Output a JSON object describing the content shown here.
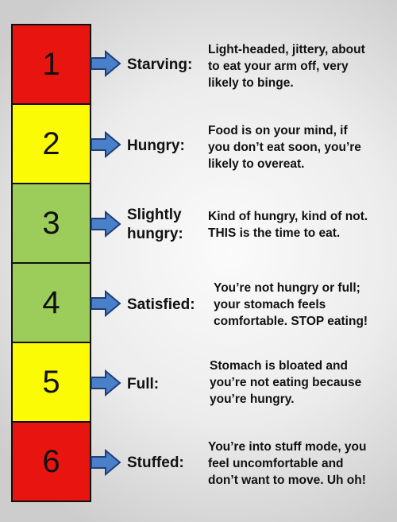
{
  "colors": {
    "red": "#e8140f",
    "yellow": "#fbfb05",
    "green": "#9ccd5b",
    "arrow": "#4a7fc9",
    "arrow_outline": "#1f3f79"
  },
  "levels": [
    {
      "number": "1",
      "color": "#e8140f",
      "label": "Starving:",
      "description": "Light-headed, jittery, about\nto eat your arm off, very\nlikely to binge."
    },
    {
      "number": "2",
      "color": "#fbfb05",
      "label": "Hungry:",
      "description": "Food is on your mind, if\nyou don’t eat soon, you’re\nlikely to overeat."
    },
    {
      "number": "3",
      "color": "#9ccd5b",
      "label": "Slightly\nhungry:",
      "description": "Kind of hungry, kind of not.\nTHIS is the time to eat."
    },
    {
      "number": "4",
      "color": "#9ccd5b",
      "label": "Satisfied:",
      "description": "You’re not hungry or full;\nyour stomach feels\ncomfortable. STOP eating!"
    },
    {
      "number": "5",
      "color": "#fbfb05",
      "label": "Full:",
      "description": "Stomach is bloated and\nyou’re not eating because\nyou’re hungry."
    },
    {
      "number": "6",
      "color": "#e8140f",
      "label": "Stuffed:",
      "description": "You’re into stuff mode, you\nfeel uncomfortable and\ndon’t want to move. Uh oh!"
    }
  ]
}
